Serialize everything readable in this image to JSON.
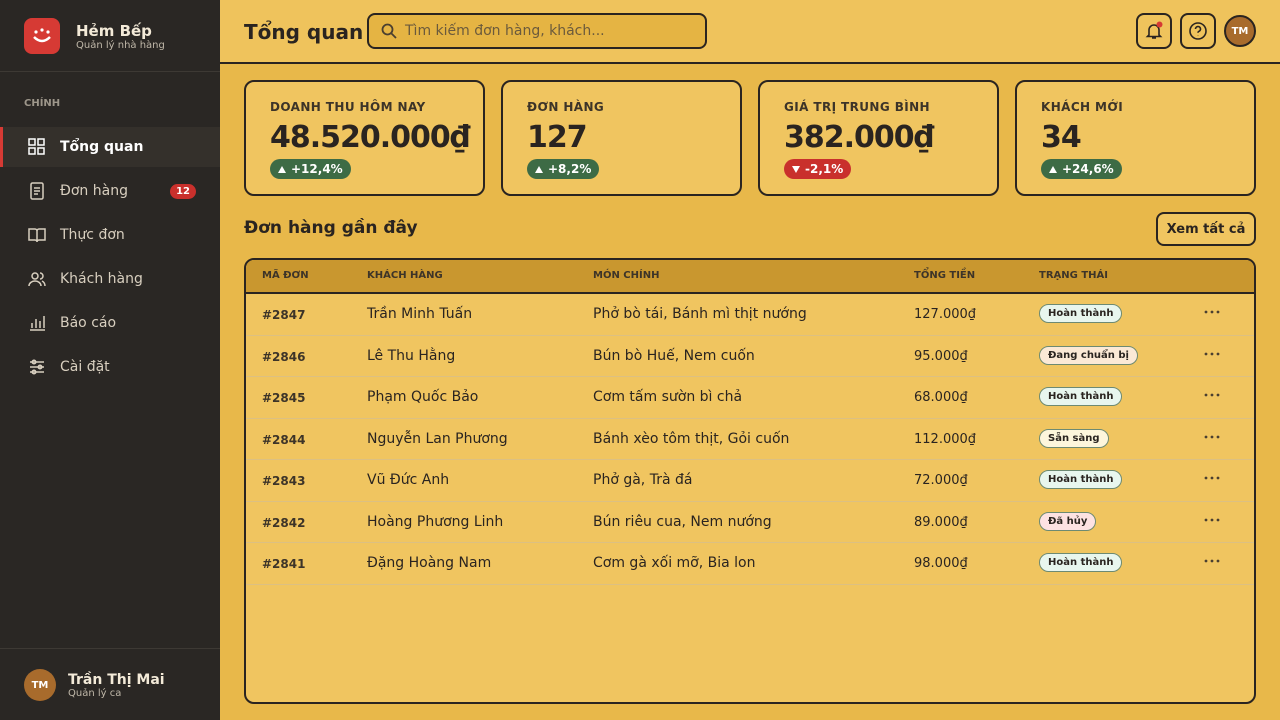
{
  "sidebar": {
    "brand": "Hẻm Bếp",
    "tagline": "Quản lý nhà hàng",
    "section": "CHÍNH",
    "nav": [
      {
        "label": "Tổng quan",
        "active": true
      },
      {
        "label": "Đơn hàng",
        "badge": "12"
      },
      {
        "label": "Thực đơn"
      },
      {
        "label": "Khách hàng"
      },
      {
        "label": "Báo cáo"
      },
      {
        "label": "Cài đặt"
      }
    ],
    "user": {
      "initials": "TM",
      "name": "Trần Thị Mai",
      "role": "Quản lý ca"
    }
  },
  "header": {
    "title": "Tổng quan",
    "search_placeholder": "Tìm kiếm đơn hàng, khách...",
    "avatar": "TM"
  },
  "stats": [
    {
      "label": "DOANH THU HÔM NAY",
      "value": "48.520.000₫",
      "change": "+12,4%",
      "trend": "up"
    },
    {
      "label": "ĐƠN HÀNG",
      "value": "127",
      "change": "+8,2%",
      "trend": "up"
    },
    {
      "label": "GIÁ TRỊ TRUNG BÌNH",
      "value": "382.000₫",
      "change": "-2,1%",
      "trend": "down"
    },
    {
      "label": "KHÁCH MỚI",
      "value": "34",
      "change": "+24,6%",
      "trend": "up"
    }
  ],
  "orders": {
    "title": "Đơn hàng gần đây",
    "view_all": "Xem tất cả",
    "columns": [
      "MÃ ĐƠN",
      "KHÁCH HÀNG",
      "MÓN CHÍNH",
      "TỔNG TIỀN",
      "TRẠNG THÁI"
    ],
    "rows": [
      {
        "id": "#2847",
        "customer": "Trần Minh Tuấn",
        "items": "Phở bò tái, Bánh mì thịt nướng",
        "total": "127.000₫",
        "status": "Hoàn thành",
        "status_color": "#e8f6ee"
      },
      {
        "id": "#2846",
        "customer": "Lê Thu Hằng",
        "items": "Bún bò Huế, Nem cuốn",
        "total": "95.000₫",
        "status": "Đang chuẩn bị",
        "status_color": "#fbe9d6"
      },
      {
        "id": "#2845",
        "customer": "Phạm Quốc Bảo",
        "items": "Cơm tấm sườn bì chả",
        "total": "68.000₫",
        "status": "Hoàn thành",
        "status_color": "#e8f6ee"
      },
      {
        "id": "#2844",
        "customer": "Nguyễn Lan Phương",
        "items": "Bánh xèo tôm thịt, Gỏi cuốn",
        "total": "112.000₫",
        "status": "Sẵn sàng",
        "status_color": "#fdf6dc"
      },
      {
        "id": "#2843",
        "customer": "Vũ Đức Anh",
        "items": "Phở gà, Trà đá",
        "total": "72.000₫",
        "status": "Hoàn thành",
        "status_color": "#e8f6ee"
      },
      {
        "id": "#2842",
        "customer": "Hoàng Phương Linh",
        "items": "Bún riêu cua, Nem nướng",
        "total": "89.000₫",
        "status": "Đã hủy",
        "status_color": "#fde2e2"
      },
      {
        "id": "#2841",
        "customer": "Đặng Hoàng Nam",
        "items": "Cơm gà xối mỡ, Bia lon",
        "total": "98.000₫",
        "status": "Hoàn thành",
        "status_color": "#e8f6ee"
      }
    ]
  }
}
